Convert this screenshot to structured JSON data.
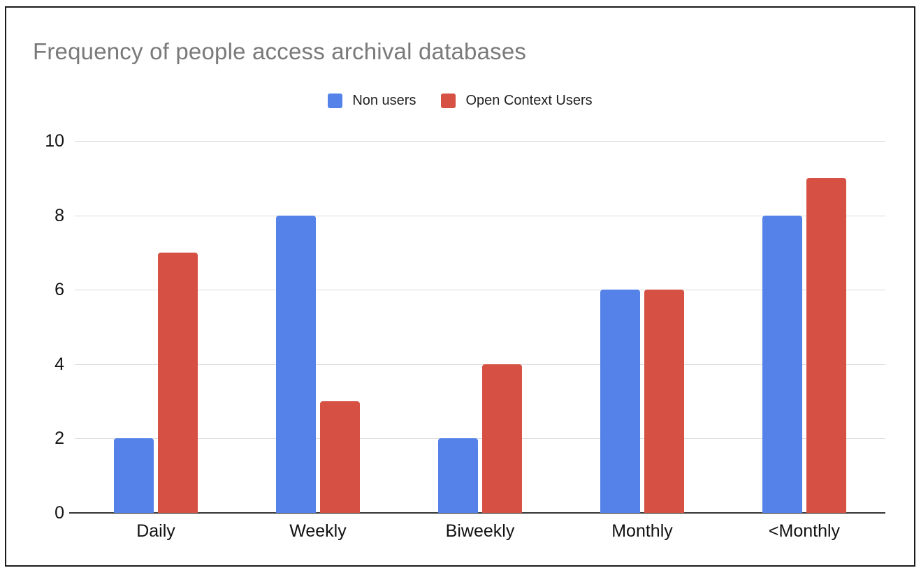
{
  "page": {
    "background": "#ffffff",
    "frame_border_color": "#1a1a1a"
  },
  "chart_data": {
    "type": "bar",
    "title": "Frequency of people access archival databases",
    "title_color": "#7a7a7a",
    "categories": [
      "Daily",
      "Weekly",
      "Biweekly",
      "Monthly",
      "<Monthly"
    ],
    "series": [
      {
        "name": "Non users",
        "color": "#5482E8",
        "values": [
          2,
          8,
          2,
          6,
          8
        ]
      },
      {
        "name": "Open Context Users",
        "color": "#D65043",
        "values": [
          7,
          3,
          4,
          6,
          9
        ]
      }
    ],
    "xlabel": "",
    "ylabel": "",
    "ylim": [
      0,
      10
    ],
    "yticks": [
      0,
      2,
      4,
      6,
      8,
      10
    ],
    "grid": true,
    "gridline_color": "#dcdcdc",
    "axis_line_color": "#333333",
    "axis_label_color": "#111111",
    "legend_position": "top"
  }
}
